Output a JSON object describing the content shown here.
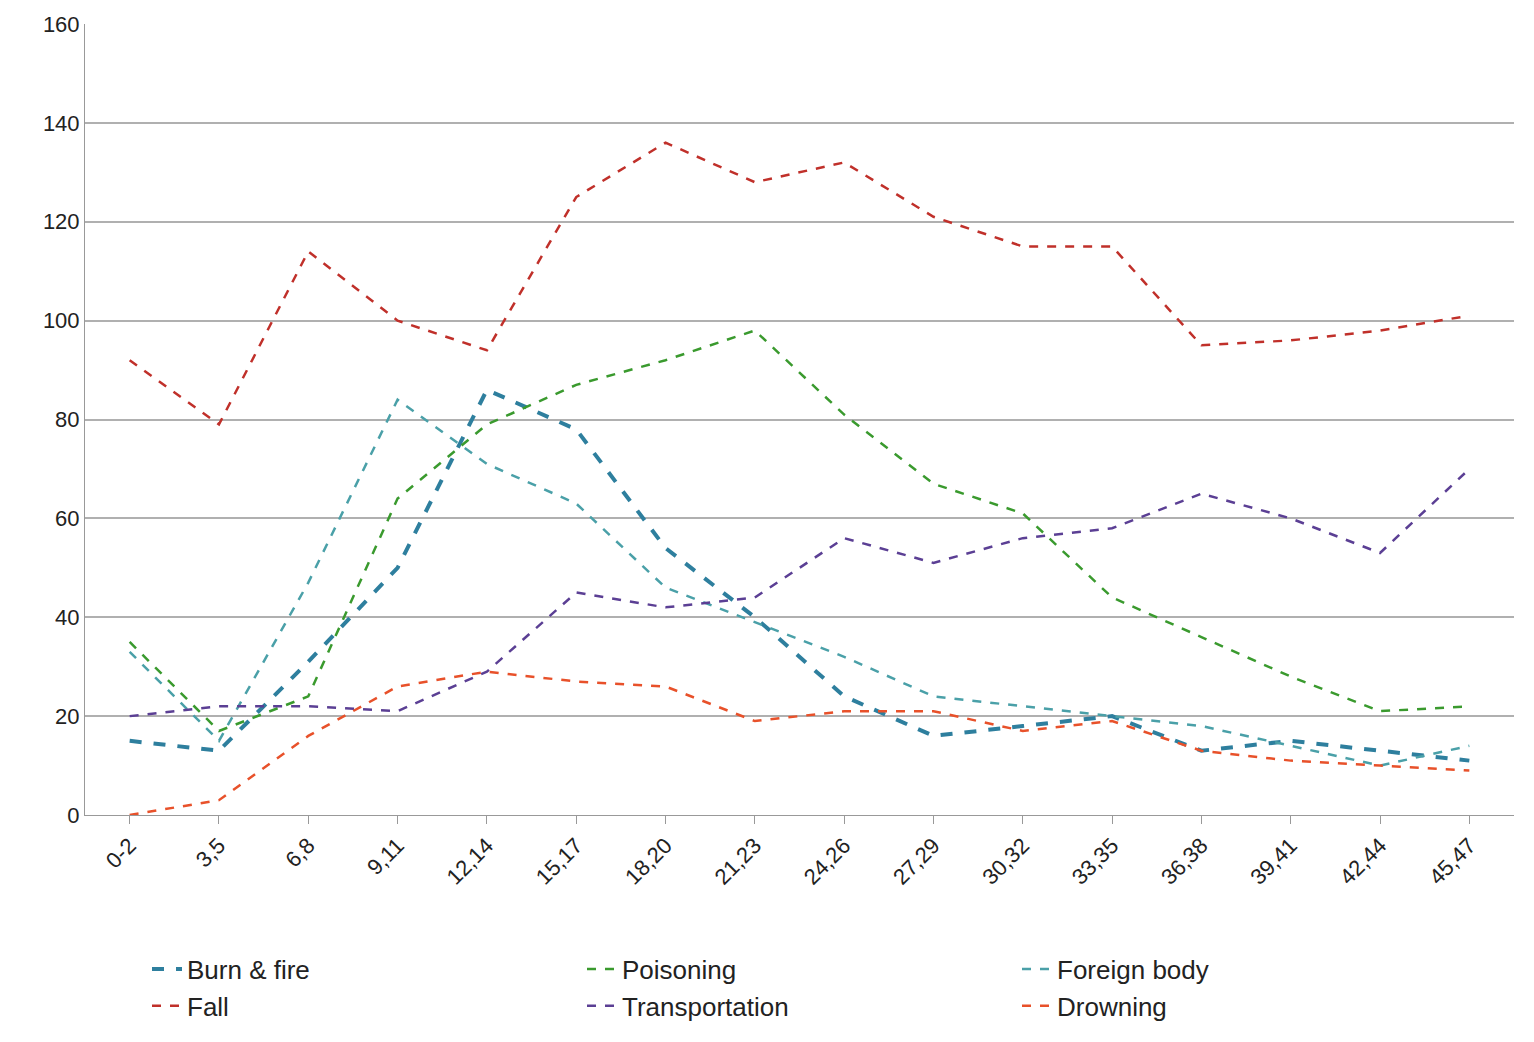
{
  "chart_data": {
    "type": "line",
    "categories": [
      "0-2",
      "3,5",
      "6,8",
      "9,11",
      "12,14",
      "15,17",
      "18,20",
      "21,23",
      "24,26",
      "27,29",
      "30,32",
      "33,35",
      "36,38",
      "39,41",
      "42,44",
      "45,47"
    ],
    "series": [
      {
        "name": "Burn & fire",
        "color": "#2e7f9e",
        "line_style": "dash",
        "values": [
          15,
          13,
          31,
          50,
          86,
          78,
          54,
          40,
          24,
          16,
          18,
          20,
          13,
          15,
          13,
          11
        ]
      },
      {
        "name": "Poisoning",
        "color": "#3a9a2e",
        "line_style": "dash",
        "values": [
          35,
          17,
          24,
          64,
          79,
          87,
          92,
          98,
          81,
          67,
          61,
          44,
          36,
          28,
          21,
          22
        ]
      },
      {
        "name": "Foreign body",
        "color": "#4aa0a8",
        "line_style": "dash",
        "values": [
          33,
          15,
          47,
          84,
          71,
          63,
          46,
          39,
          32,
          24,
          22,
          20,
          18,
          14,
          10,
          14
        ]
      },
      {
        "name": "Fall",
        "color": "#c0302a",
        "line_style": "dash",
        "values": [
          92,
          79,
          114,
          100,
          94,
          125,
          136,
          128,
          132,
          121,
          115,
          115,
          95,
          96,
          98,
          101
        ]
      },
      {
        "name": "Transportation",
        "color": "#5b3f94",
        "line_style": "dash",
        "values": [
          20,
          22,
          22,
          21,
          29,
          45,
          42,
          44,
          56,
          51,
          56,
          58,
          65,
          60,
          53,
          70
        ]
      },
      {
        "name": "Drowning",
        "color": "#e8512a",
        "line_style": "dash",
        "values": [
          0,
          3,
          16,
          26,
          29,
          27,
          26,
          19,
          21,
          21,
          17,
          19,
          13,
          11,
          10,
          9
        ]
      }
    ],
    "ylim": [
      0,
      160
    ],
    "yticks": [
      0,
      20,
      40,
      60,
      80,
      100,
      120,
      140,
      160
    ],
    "grid": true,
    "legend": "bottom"
  }
}
